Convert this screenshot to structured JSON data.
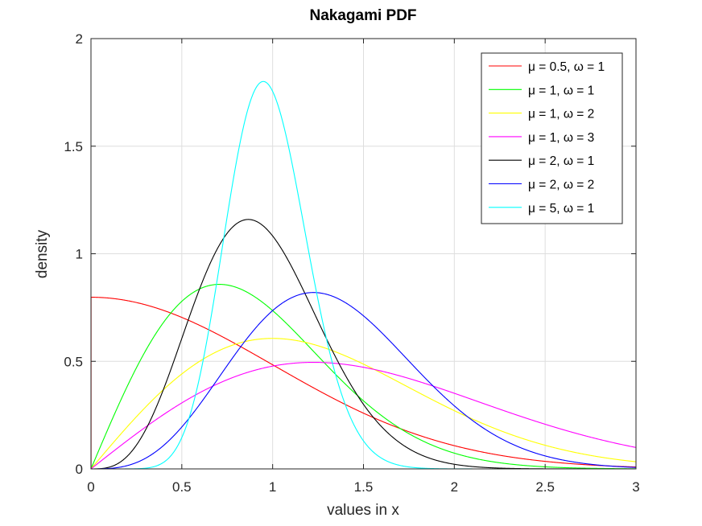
{
  "chart_data": {
    "type": "line",
    "title": "Nakagami PDF",
    "xlabel": "values in x",
    "ylabel": "density",
    "xlim": [
      0,
      3
    ],
    "ylim": [
      0,
      2
    ],
    "x_ticks": [
      0,
      0.5,
      1,
      1.5,
      2,
      2.5,
      3
    ],
    "y_ticks": [
      0,
      0.5,
      1,
      1.5,
      2
    ],
    "x_tick_labels": [
      "0",
      "0.5",
      "1",
      "1.5",
      "2",
      "2.5",
      "3"
    ],
    "y_tick_labels": [
      "0",
      "0.5",
      "1",
      "1.5",
      "2"
    ],
    "grid": true,
    "legend_position": "top-right",
    "x": [
      0.0,
      0.25,
      0.5,
      0.75,
      1.0,
      1.25,
      1.5,
      1.75,
      2.0,
      2.25,
      2.5,
      2.75,
      3.0
    ],
    "series": [
      {
        "name": "μ = 0.5, ω = 1",
        "color": "#ff0000",
        "mu": 0.5,
        "omega": 1,
        "values": [
          0.7979,
          0.7739,
          0.7041,
          0.6023,
          0.4839,
          0.3652,
          0.259,
          0.1725,
          0.108,
          0.0635,
          0.035,
          0.0181,
          0.0089
        ]
      },
      {
        "name": "μ = 1, ω = 1",
        "color": "#00ff00",
        "mu": 1,
        "omega": 1,
        "values": [
          0.0,
          0.4697,
          0.7788,
          0.8546,
          0.7358,
          0.524,
          0.3162,
          0.1635,
          0.0733,
          0.0284,
          0.0097,
          0.0029,
          0.0007
        ]
      },
      {
        "name": "μ = 1, ω = 2",
        "color": "#ffff00",
        "mu": 1,
        "omega": 2,
        "values": [
          0.0,
          0.2423,
          0.4412,
          0.5696,
          0.6065,
          0.5733,
          0.487,
          0.377,
          0.2707,
          0.1788,
          0.1101,
          0.0622,
          0.0333
        ]
      },
      {
        "name": "μ = 1, ω = 3",
        "color": "#ff00ff",
        "mu": 1,
        "omega": 3,
        "values": [
          0.0,
          0.1634,
          0.3072,
          0.413,
          0.4778,
          0.4928,
          0.4721,
          0.416,
          0.3452,
          0.2693,
          0.1981,
          0.1375,
          0.0996
        ]
      },
      {
        "name": "μ = 2, ω = 1",
        "color": "#000000",
        "mu": 2,
        "omega": 1,
        "values": [
          0.0,
          0.1102,
          0.6065,
          1.1389,
          1.0827,
          0.5706,
          0.1778,
          0.0316,
          0.0034,
          0.0002,
          0.0,
          0.0,
          0.0
        ]
      },
      {
        "name": "μ = 2, ω = 2",
        "color": "#0000ff",
        "mu": 2,
        "omega": 2,
        "values": [
          0.0,
          0.0153,
          0.1103,
          0.3155,
          0.6065,
          0.8121,
          0.795,
          0.6046,
          0.3663,
          0.177,
          0.0706,
          0.0217,
          0.0051
        ]
      },
      {
        "name": "μ = 5, ω = 1",
        "color": "#00ffff",
        "mu": 5,
        "omega": 1,
        "values": [
          0.0,
          0.0,
          0.0386,
          0.7549,
          1.7547,
          0.6233,
          0.0406,
          0.0005,
          0.0,
          0.0,
          0.0,
          0.0,
          0.0
        ]
      }
    ]
  }
}
